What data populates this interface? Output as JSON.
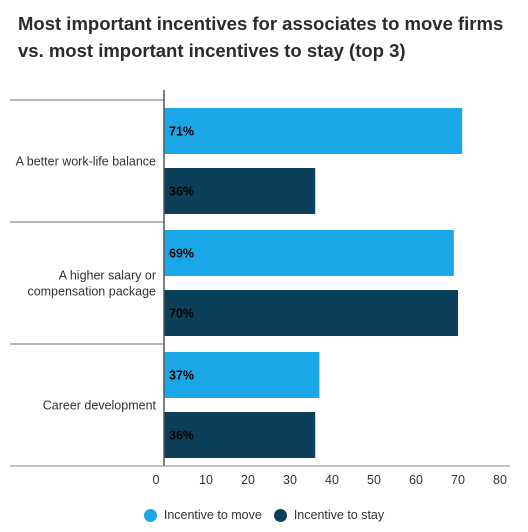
{
  "chart_data": {
    "type": "bar",
    "orientation": "horizontal",
    "title": "Most important incentives for associates to move firms vs. most important incentives to stay (top 3)",
    "categories": [
      [
        "A better work-life balance"
      ],
      [
        "A higher salary or",
        "compensation package"
      ],
      [
        "Career development"
      ]
    ],
    "series": [
      {
        "name": "Incentive to move",
        "color": "#1aa7e8",
        "values": [
          71,
          69,
          37
        ],
        "labels": [
          "71%",
          "69%",
          "37%"
        ]
      },
      {
        "name": "Incentive to stay",
        "color": "#0c3f5a",
        "values": [
          36,
          70,
          36
        ],
        "labels": [
          "36%",
          "70%",
          "36%"
        ]
      }
    ],
    "xlim": [
      0,
      80
    ],
    "xticks": [
      "0",
      "10",
      "20",
      "30",
      "40",
      "50",
      "60",
      "70",
      "80"
    ],
    "grid": false,
    "legend_position": "bottom"
  }
}
